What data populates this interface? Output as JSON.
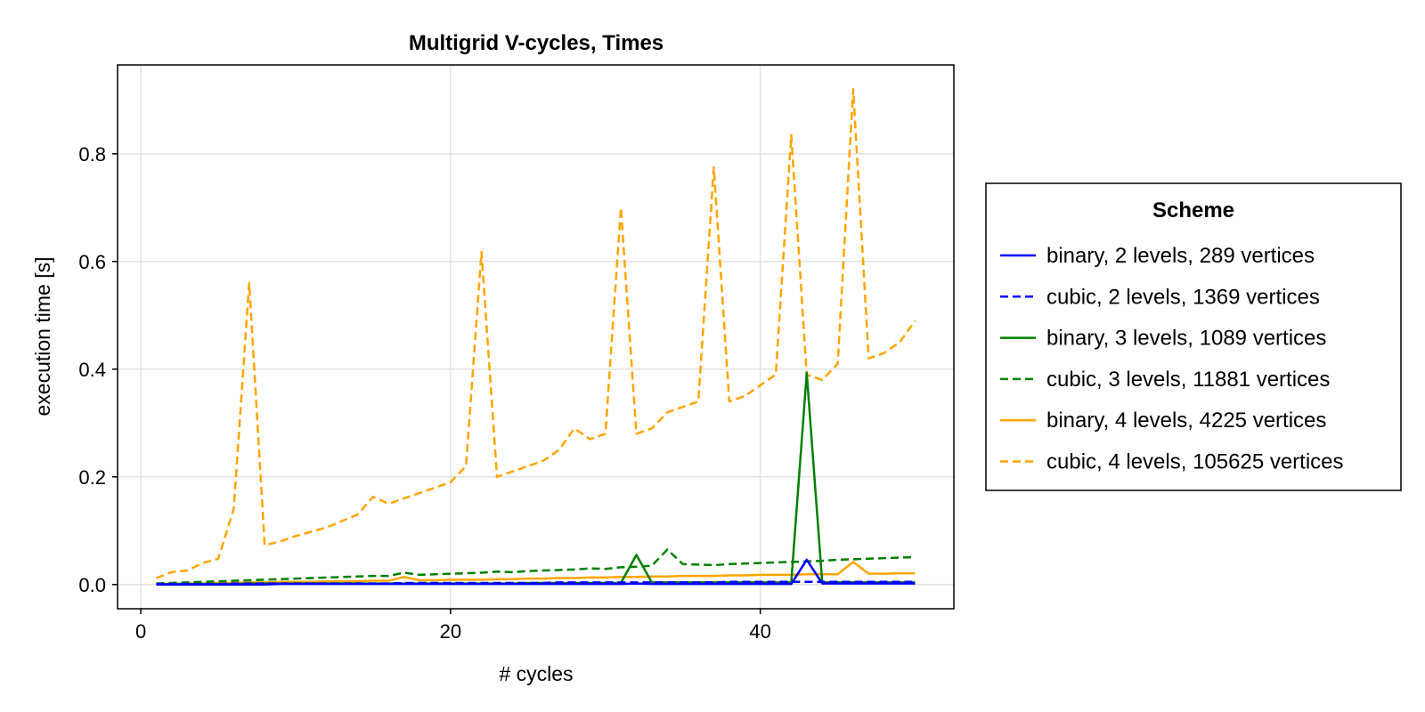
{
  "chart_data": {
    "type": "line",
    "title": "Multigrid V-cycles, Times",
    "xlabel": "# cycles",
    "ylabel": "execution time [s]",
    "xlim": [
      -1.5,
      52.5
    ],
    "ylim": [
      -0.045,
      0.965
    ],
    "xticks": [
      0,
      20,
      40
    ],
    "yticks": [
      0.0,
      0.2,
      0.4,
      0.6,
      0.8
    ],
    "xtick_labels": [
      "0",
      "20",
      "40"
    ],
    "ytick_labels": [
      "0.0",
      "0.2",
      "0.4",
      "0.6",
      "0.8"
    ],
    "grid": true,
    "legend": {
      "title": "Scheme",
      "position": "right"
    },
    "x": [
      1,
      2,
      3,
      4,
      5,
      6,
      7,
      8,
      9,
      10,
      11,
      12,
      13,
      14,
      15,
      16,
      17,
      18,
      19,
      20,
      21,
      22,
      23,
      24,
      25,
      26,
      27,
      28,
      29,
      30,
      31,
      32,
      33,
      34,
      35,
      36,
      37,
      38,
      39,
      40,
      41,
      42,
      43,
      44,
      45,
      46,
      47,
      48,
      49,
      50
    ],
    "series": [
      {
        "name": "binary, 2 levels, 289 vertices",
        "color": "#0000ff",
        "dash": "solid",
        "values": [
          0.0,
          0.0,
          0.0,
          0.0,
          0.0,
          0.0,
          0.0,
          0.0,
          0.001,
          0.001,
          0.001,
          0.001,
          0.001,
          0.001,
          0.001,
          0.001,
          0.001,
          0.001,
          0.001,
          0.001,
          0.001,
          0.001,
          0.001,
          0.001,
          0.001,
          0.001,
          0.001,
          0.001,
          0.001,
          0.001,
          0.001,
          0.002,
          0.001,
          0.001,
          0.001,
          0.001,
          0.001,
          0.001,
          0.001,
          0.001,
          0.001,
          0.001,
          0.046,
          0.002,
          0.002,
          0.002,
          0.002,
          0.002,
          0.002,
          0.002
        ]
      },
      {
        "name": "cubic, 2 levels, 1369 vertices",
        "color": "#0000ff",
        "dash": "dashed",
        "values": [
          0.001,
          0.001,
          0.001,
          0.001,
          0.001,
          0.002,
          0.002,
          0.002,
          0.002,
          0.002,
          0.002,
          0.002,
          0.002,
          0.002,
          0.002,
          0.002,
          0.003,
          0.003,
          0.003,
          0.003,
          0.003,
          0.003,
          0.003,
          0.003,
          0.003,
          0.003,
          0.004,
          0.004,
          0.004,
          0.004,
          0.004,
          0.004,
          0.004,
          0.004,
          0.004,
          0.004,
          0.004,
          0.005,
          0.005,
          0.005,
          0.005,
          0.005,
          0.005,
          0.005,
          0.005,
          0.005,
          0.005,
          0.005,
          0.005,
          0.005
        ]
      },
      {
        "name": "binary, 3 levels, 1089 vertices",
        "color": "#008000",
        "dash": "solid",
        "values": [
          0.001,
          0.001,
          0.001,
          0.001,
          0.001,
          0.001,
          0.002,
          0.002,
          0.002,
          0.002,
          0.002,
          0.002,
          0.002,
          0.002,
          0.002,
          0.002,
          0.002,
          0.002,
          0.002,
          0.002,
          0.002,
          0.002,
          0.002,
          0.002,
          0.003,
          0.003,
          0.003,
          0.003,
          0.003,
          0.003,
          0.003,
          0.055,
          0.004,
          0.004,
          0.004,
          0.004,
          0.004,
          0.004,
          0.004,
          0.004,
          0.004,
          0.004,
          0.393,
          0.004,
          0.004,
          0.004,
          0.004,
          0.004,
          0.004,
          0.004
        ]
      },
      {
        "name": "cubic, 3 levels, 11881 vertices",
        "color": "#008000",
        "dash": "dashed",
        "values": [
          0.002,
          0.003,
          0.004,
          0.005,
          0.006,
          0.007,
          0.008,
          0.009,
          0.01,
          0.011,
          0.012,
          0.013,
          0.014,
          0.015,
          0.016,
          0.016,
          0.022,
          0.018,
          0.019,
          0.02,
          0.021,
          0.022,
          0.024,
          0.023,
          0.025,
          0.026,
          0.027,
          0.028,
          0.03,
          0.029,
          0.032,
          0.033,
          0.035,
          0.065,
          0.038,
          0.037,
          0.036,
          0.038,
          0.039,
          0.04,
          0.041,
          0.042,
          0.043,
          0.044,
          0.046,
          0.047,
          0.048,
          0.049,
          0.05,
          0.051
        ]
      },
      {
        "name": "binary, 4 levels, 4225 vertices",
        "color": "#ffa500",
        "dash": "solid",
        "values": [
          0.001,
          0.001,
          0.002,
          0.002,
          0.003,
          0.003,
          0.004,
          0.004,
          0.005,
          0.005,
          0.005,
          0.006,
          0.006,
          0.006,
          0.007,
          0.007,
          0.014,
          0.008,
          0.008,
          0.009,
          0.009,
          0.009,
          0.01,
          0.01,
          0.011,
          0.011,
          0.012,
          0.012,
          0.013,
          0.013,
          0.014,
          0.014,
          0.015,
          0.015,
          0.016,
          0.016,
          0.016,
          0.017,
          0.017,
          0.018,
          0.018,
          0.018,
          0.019,
          0.019,
          0.019,
          0.042,
          0.02,
          0.02,
          0.021,
          0.021
        ]
      },
      {
        "name": "cubic, 4 levels, 105625 vertices",
        "color": "#ffa500",
        "dash": "dashed",
        "values": [
          0.012,
          0.023,
          0.026,
          0.04,
          0.048,
          0.14,
          0.56,
          0.073,
          0.08,
          0.09,
          0.098,
          0.106,
          0.118,
          0.13,
          0.163,
          0.15,
          0.16,
          0.17,
          0.18,
          0.19,
          0.22,
          0.618,
          0.2,
          0.21,
          0.22,
          0.23,
          0.25,
          0.29,
          0.27,
          0.28,
          0.7,
          0.28,
          0.29,
          0.32,
          0.33,
          0.34,
          0.775,
          0.34,
          0.35,
          0.37,
          0.39,
          0.835,
          0.39,
          0.38,
          0.41,
          0.92,
          0.42,
          0.43,
          0.45,
          0.49
        ]
      }
    ]
  }
}
